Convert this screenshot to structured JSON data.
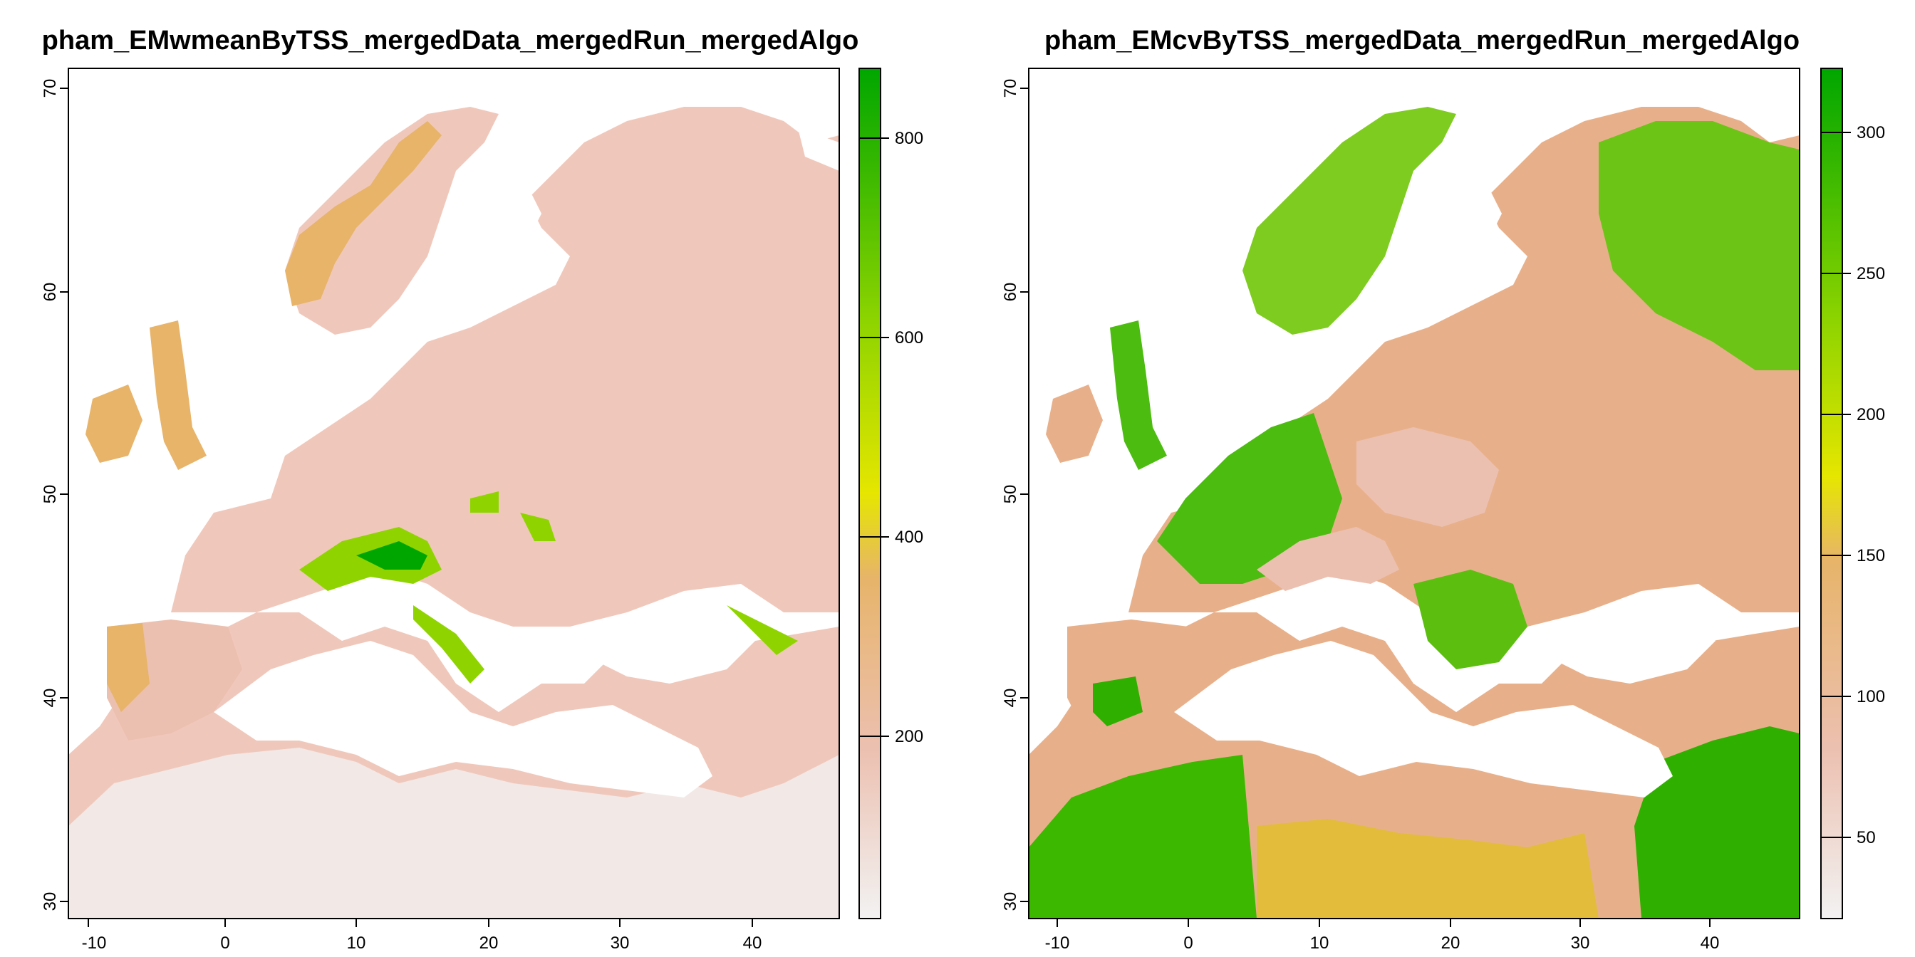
{
  "panels": [
    {
      "title": "pham_EMwmeanByTSS_mergedData_mergedRun_mergedAlgo",
      "x_ticks": [
        "-10",
        "0",
        "10",
        "20",
        "30",
        "40"
      ],
      "y_ticks": [
        "70",
        "60",
        "50",
        "40",
        "30"
      ],
      "legend_ticks": [
        "800",
        "600",
        "400",
        "200"
      ],
      "legend_range": [
        0,
        870
      ]
    },
    {
      "title": "pham_EMcvByTSS_mergedData_mergedRun_mergedAlgo",
      "x_ticks": [
        "-10",
        "0",
        "10",
        "20",
        "30",
        "40"
      ],
      "y_ticks": [
        "70",
        "60",
        "50",
        "40",
        "30"
      ],
      "legend_ticks": [
        "300",
        "250",
        "200",
        "150",
        "100",
        "50"
      ],
      "legend_range": [
        20,
        322
      ]
    }
  ],
  "colors": {
    "low": "#f2f2f2",
    "pink": "#ecc0b0",
    "orange": "#e7b46a",
    "yellow": "#e6e600",
    "lightgreen": "#8fd400",
    "green": "#00a600",
    "land_default_left": "#f0c8bb",
    "land_default_right": "#e8b08a"
  }
}
